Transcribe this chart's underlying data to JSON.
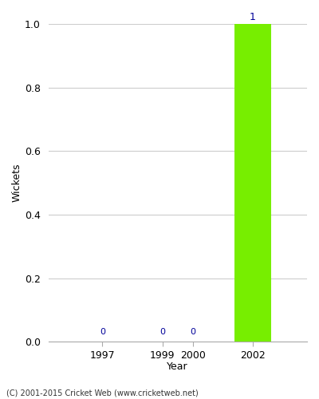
{
  "years": [
    1997,
    1999,
    2000,
    2002
  ],
  "values": [
    0,
    0,
    0,
    1
  ],
  "bar_color": "#77ee00",
  "label_color": "#000099",
  "xlabel": "Year",
  "ylabel": "Wickets",
  "ylim": [
    0,
    1.0
  ],
  "yticks": [
    0.0,
    0.2,
    0.4,
    0.6,
    0.8,
    1.0
  ],
  "xticks": [
    1997,
    1999,
    2000,
    2002
  ],
  "xlim": [
    1995.2,
    2003.8
  ],
  "footer": "(C) 2001-2015 Cricket Web (www.cricketweb.net)",
  "bar_width": 1.2,
  "grid_color": "#cccccc",
  "background_color": "#ffffff",
  "tick_fontsize": 9,
  "label_fontsize": 9
}
